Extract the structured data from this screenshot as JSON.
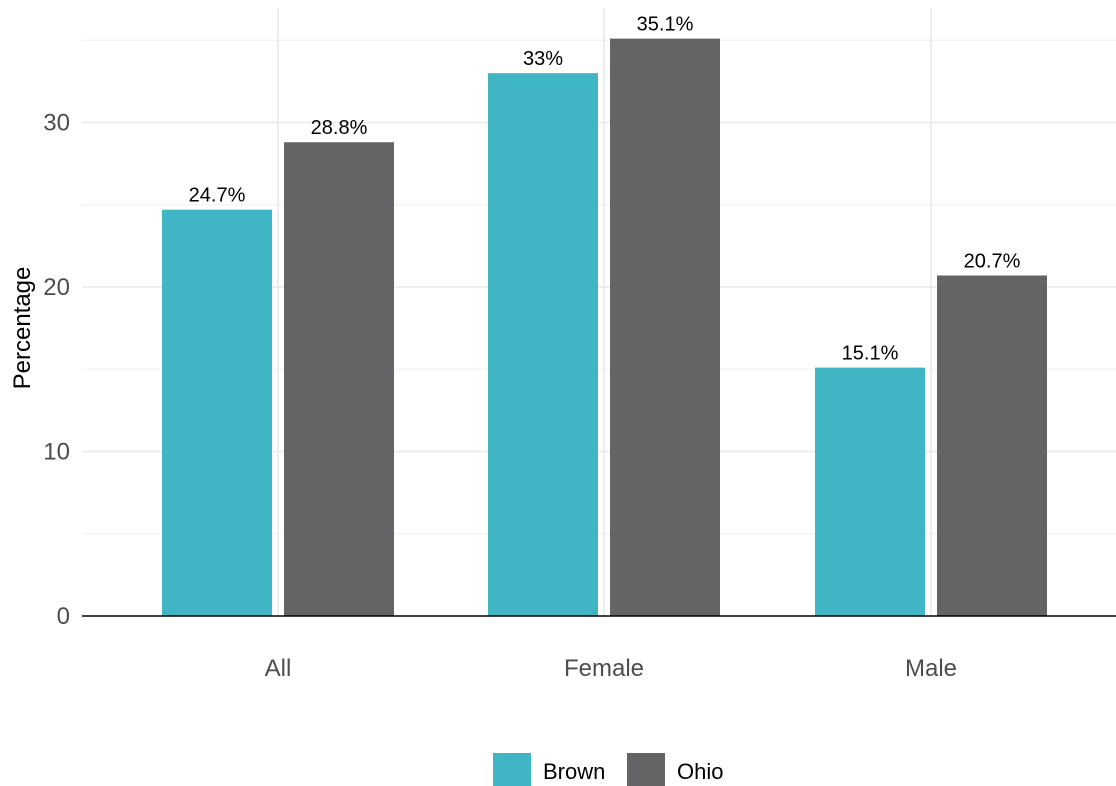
{
  "chart_data": {
    "type": "bar",
    "categories": [
      "All",
      "Female",
      "Male"
    ],
    "series": [
      {
        "name": "Brown",
        "values": [
          24.7,
          33.0,
          15.1
        ],
        "labels": [
          "24.7%",
          "33%",
          "15.1%"
        ],
        "color": "#40b5c4"
      },
      {
        "name": "Ohio",
        "values": [
          28.8,
          35.1,
          20.7
        ],
        "labels": [
          "28.8%",
          "35.1%",
          "20.7%"
        ],
        "color": "#636466"
      }
    ],
    "xlabel": "",
    "ylabel": "Percentage",
    "ylim": [
      0,
      36
    ],
    "yticks": [
      0,
      10,
      20,
      30
    ],
    "ytick_labels": [
      "0",
      "10",
      "20",
      "30"
    ],
    "grid": true,
    "legend_position": "bottom"
  }
}
